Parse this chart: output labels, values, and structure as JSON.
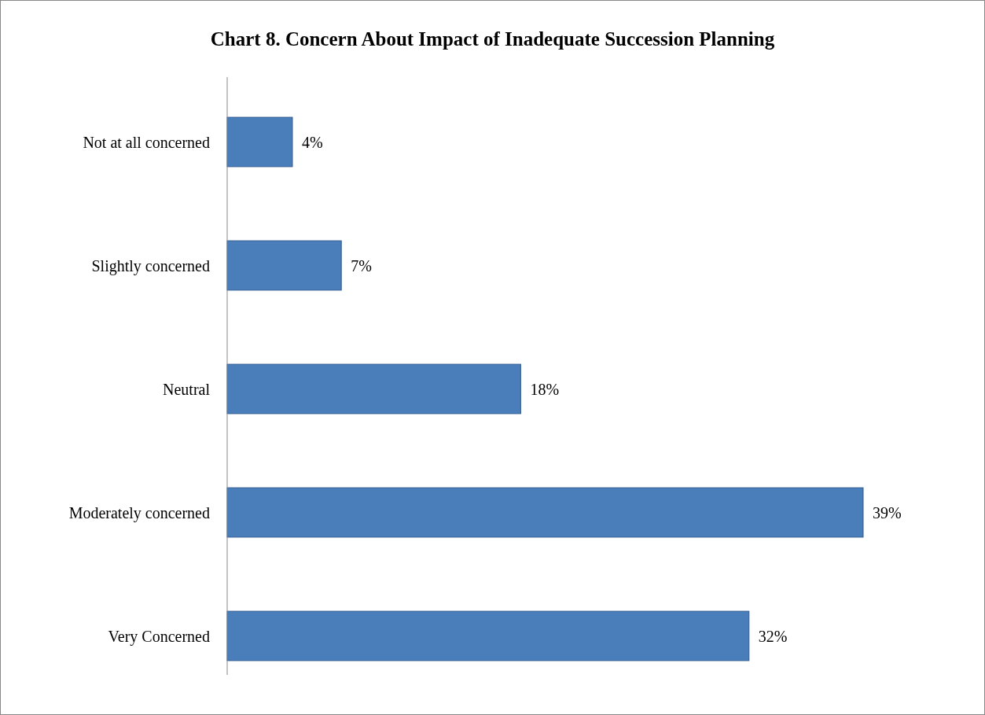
{
  "chart_data": {
    "type": "bar",
    "orientation": "horizontal",
    "title": "Chart 8. Concern About Impact of Inadequate Succession Planning",
    "categories": [
      "Not at all concerned",
      "Slightly concerned",
      "Neutral",
      "Moderately concerned",
      "Very Concerned"
    ],
    "values": [
      4,
      7,
      18,
      39,
      32
    ],
    "color": "#4a7ebb",
    "value_labels": [
      "4%",
      "7%",
      "18%",
      "39%",
      "32%"
    ]
  }
}
